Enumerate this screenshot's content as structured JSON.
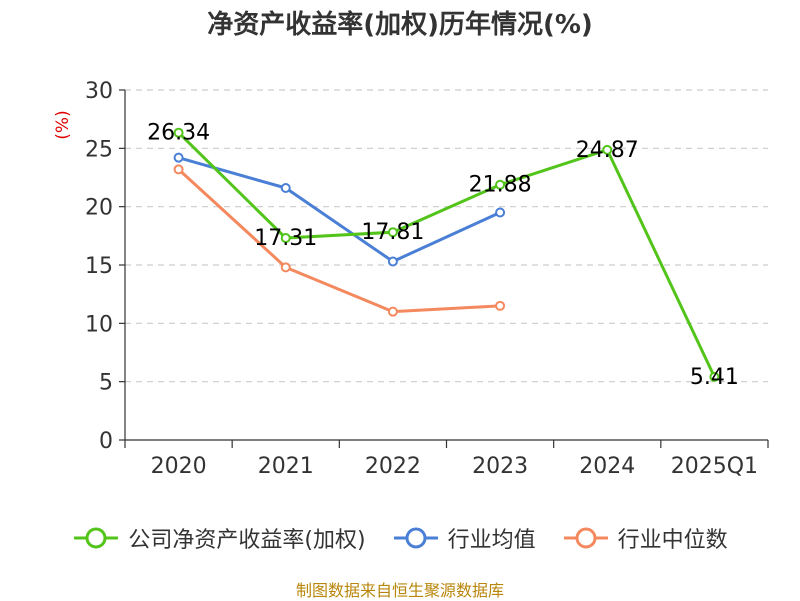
{
  "title": "净资产收益率(加权)历年情况(%)",
  "source": "制图数据来自恒生聚源数据库",
  "chart_data": {
    "type": "line",
    "title": "净资产收益率(加权)历年情况(%)",
    "xlabel": "",
    "ylabel": "(%)",
    "ylim": [
      0,
      30
    ],
    "yticks": [
      0,
      5,
      10,
      15,
      20,
      25,
      30
    ],
    "categories": [
      "2020",
      "2021",
      "2022",
      "2023",
      "2024",
      "2025Q1"
    ],
    "grid": true,
    "series": [
      {
        "name": "公司净资产收益率(加权)",
        "color": "#52c41a",
        "values": [
          26.34,
          17.31,
          17.81,
          21.88,
          24.87,
          5.41
        ],
        "labels": [
          "26.34",
          "17.31",
          "17.81",
          "21.88",
          "24.87",
          "5.41"
        ]
      },
      {
        "name": "行业均值",
        "color": "#4a7fd6",
        "values": [
          24.2,
          21.6,
          15.3,
          19.5,
          null,
          null
        ]
      },
      {
        "name": "行业中位数",
        "color": "#f4895f",
        "values": [
          23.2,
          14.8,
          11.0,
          11.5,
          null,
          null
        ]
      }
    ]
  }
}
